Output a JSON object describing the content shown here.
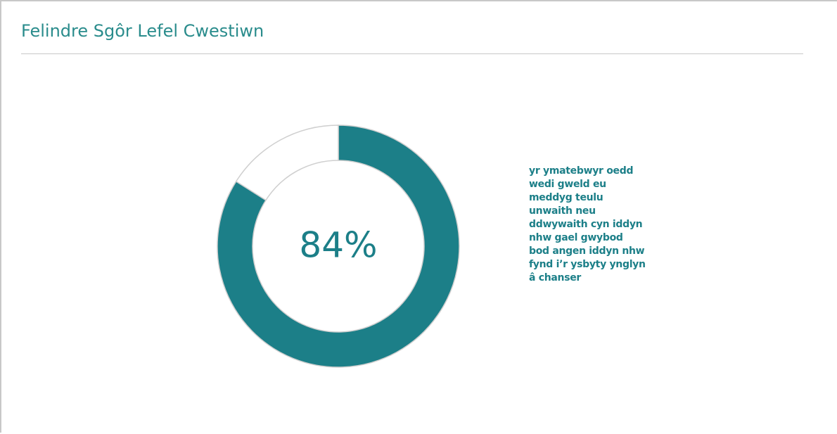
{
  "chart_data": {
    "type": "donut",
    "title": "Felindre Sgôr Lefel Cwestiwn",
    "value": 84,
    "value_label": "84%",
    "color": "#1c7f88",
    "description": " yr ymatebwyr oedd\nwedi gweld eu\nmeddyg teulu\nunwaith neu\nddwywaith cyn iddyn\nnhw gael gwybod\nbod angen iddyn nhw\nfynd i’r ysbyty ynglyn\nâ chanser"
  }
}
